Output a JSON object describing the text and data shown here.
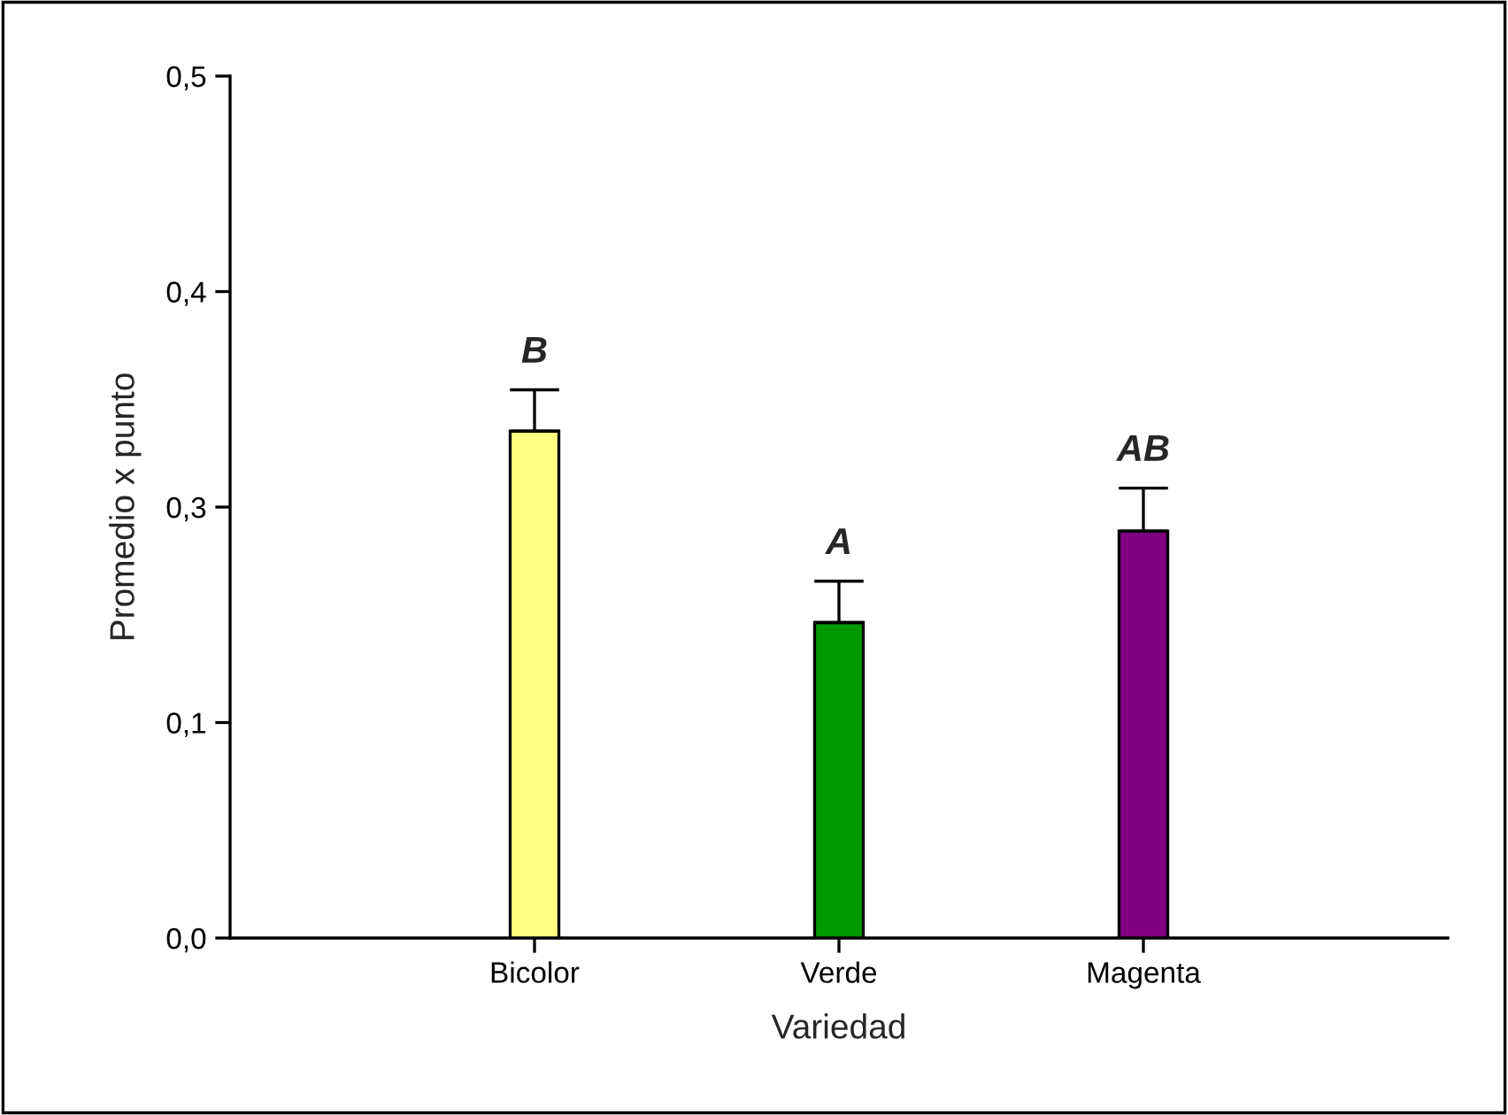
{
  "chart_data": {
    "type": "bar",
    "xlabel": "Variedad",
    "ylabel": "Promedio x punto",
    "categories": [
      "Bicolor",
      "Verde",
      "Magenta"
    ],
    "values": [
      0.294,
      0.183,
      0.236
    ],
    "colors": [
      "#ffff80",
      "#009900",
      "#800080"
    ],
    "errors": [
      [
        0.294,
        0.318
      ],
      [
        0.183,
        0.207
      ],
      [
        0.236,
        0.261
      ]
    ],
    "ylim": [
      0,
      0.5
    ],
    "yticks": [
      {
        "value": 0,
        "label": "0,0"
      },
      {
        "value": 0.125,
        "label": "0,1"
      },
      {
        "value": 0.25,
        "label": "0,3"
      },
      {
        "value": 0.375,
        "label": "0,4"
      },
      {
        "value": 0.5,
        "label": "0,5"
      }
    ],
    "annotations": [
      {
        "text": "B",
        "x": "Bicolor",
        "y": 0.318
      },
      {
        "text": "A",
        "x": "Verde",
        "y": 0.207
      },
      {
        "text": "AB",
        "x": "Magenta",
        "y": 0.261
      }
    ],
    "grid": false,
    "legend": false
  }
}
